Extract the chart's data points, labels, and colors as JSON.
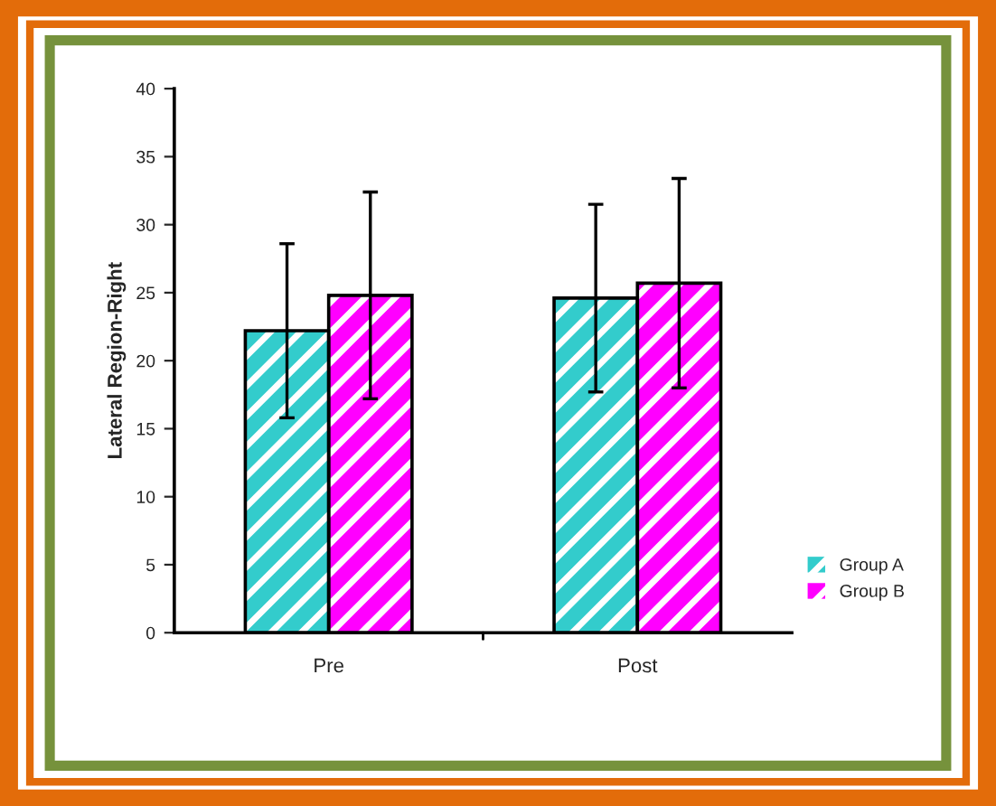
{
  "chart_data": {
    "type": "bar",
    "ylabel": "Lateral Region-Right",
    "categories": [
      "Pre",
      "Post"
    ],
    "series": [
      {
        "name": "Group A",
        "color": "#33cccc",
        "values": [
          22.2,
          24.6
        ],
        "errors": [
          6.4,
          6.9
        ]
      },
      {
        "name": "Group B",
        "color": "#ff00ff",
        "values": [
          24.8,
          25.7
        ],
        "errors": [
          7.6,
          7.7
        ]
      }
    ],
    "ylim": [
      0,
      40
    ],
    "yticks": [
      0,
      5,
      10,
      15,
      20,
      25,
      30,
      35,
      40
    ],
    "grid": false,
    "legend": "lower right"
  }
}
